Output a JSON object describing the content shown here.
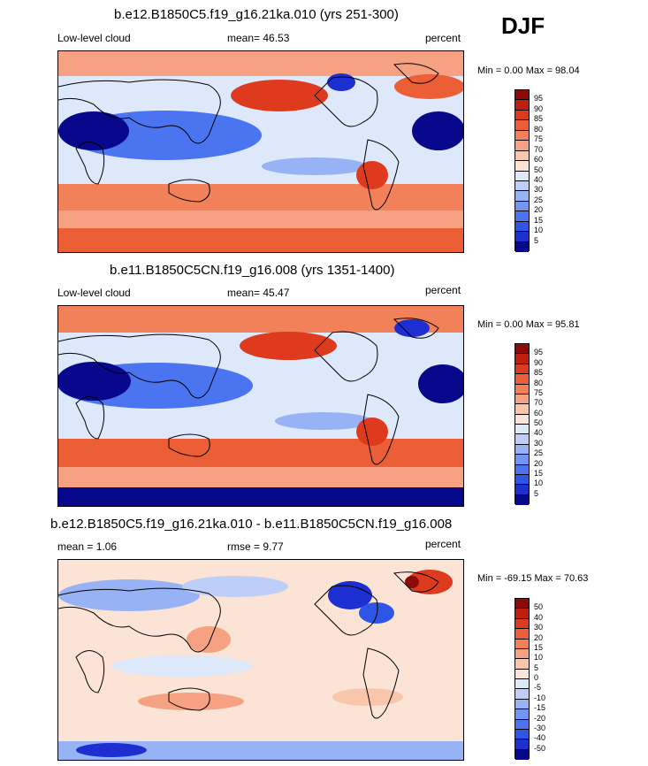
{
  "season": "DJF",
  "palettes": {
    "main": [
      "#08088c",
      "#1d2fd0",
      "#2f55e6",
      "#4a74f0",
      "#7295f2",
      "#98b3f5",
      "#bdcff9",
      "#dde8fb",
      "#fbe3d5",
      "#f9c6ac",
      "#f6a181",
      "#f28058",
      "#ec5e36",
      "#de3b1e",
      "#c01f10",
      "#8c0a08"
    ],
    "diff": [
      "#08088c",
      "#1d2fd0",
      "#2f55e6",
      "#4a74f0",
      "#7295f2",
      "#98b3f5",
      "#bdcff9",
      "#dde8fb",
      "#fbe3d5",
      "#f9c6ac",
      "#f6a181",
      "#f28058",
      "#ec5e36",
      "#de3b1e",
      "#c01f10",
      "#8c0a08"
    ]
  },
  "panels": [
    {
      "title": "b.e12.B1850C5.f19_g16.21ka.010 (yrs 251-300)",
      "left_label": "Low-level cloud",
      "mean_label": "mean=  46.53",
      "units": "percent",
      "minmax": "Min =   0.00 Max =  98.04",
      "palette": "main",
      "colorbar_ticks": [
        "95",
        "90",
        "85",
        "80",
        "75",
        "70",
        "60",
        "50",
        "40",
        "30",
        "25",
        "20",
        "15",
        "10",
        "5"
      ]
    },
    {
      "title": "b.e11.B1850C5CN.f19_g16.008 (yrs 1351-1400)",
      "left_label": "Low-level cloud",
      "mean_label": "mean=  45.47",
      "units": "percent",
      "minmax": "Min =   0.00 Max =  95.81",
      "palette": "main",
      "colorbar_ticks": [
        "95",
        "90",
        "85",
        "80",
        "75",
        "70",
        "60",
        "50",
        "40",
        "30",
        "25",
        "20",
        "15",
        "10",
        "5"
      ]
    },
    {
      "title": "b.e12.B1850C5.f19_g16.21ka.010 - b.e11.B1850C5CN.f19_g16.008",
      "left_label": "mean =   1.06",
      "mean_label": "rmse =   9.77",
      "units": "percent",
      "minmax": "Min = -69.15 Max =  70.63",
      "palette": "diff",
      "colorbar_ticks": [
        "50",
        "40",
        "30",
        "20",
        "15",
        "10",
        "5",
        "0",
        "-5",
        "-10",
        "-15",
        "-20",
        "-30",
        "-40",
        "-50"
      ]
    }
  ],
  "chart_data": [
    {
      "type": "heatmap",
      "title": "b.e12.B1850C5.f19_g16.21ka.010 (yrs 251-300)",
      "variable": "Low-level cloud",
      "units": "percent",
      "mean": 46.53,
      "min": 0.0,
      "max": 98.04,
      "colorbar_levels": [
        5,
        10,
        15,
        20,
        25,
        30,
        40,
        50,
        60,
        70,
        75,
        80,
        85,
        90,
        95
      ]
    },
    {
      "type": "heatmap",
      "title": "b.e11.B1850C5CN.f19_g16.008 (yrs 1351-1400)",
      "variable": "Low-level cloud",
      "units": "percent",
      "mean": 45.47,
      "min": 0.0,
      "max": 95.81,
      "colorbar_levels": [
        5,
        10,
        15,
        20,
        25,
        30,
        40,
        50,
        60,
        70,
        75,
        80,
        85,
        90,
        95
      ]
    },
    {
      "type": "heatmap",
      "title": "b.e12.B1850C5.f19_g16.21ka.010 - b.e11.B1850C5CN.f19_g16.008",
      "units": "percent",
      "mean": 1.06,
      "rmse": 9.77,
      "min": -69.15,
      "max": 70.63,
      "colorbar_levels": [
        -50,
        -40,
        -30,
        -20,
        -15,
        -10,
        -5,
        0,
        5,
        10,
        15,
        20,
        30,
        40,
        50
      ]
    }
  ]
}
